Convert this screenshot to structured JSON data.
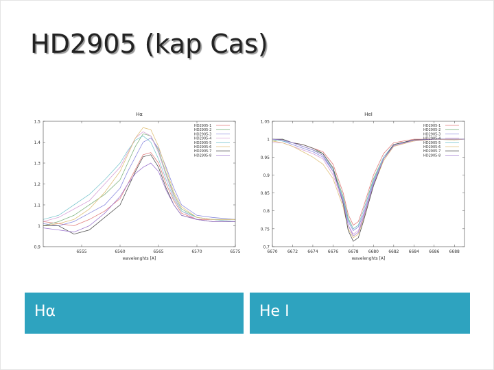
{
  "slide": {
    "title": "HD2905 (kap Cas)"
  },
  "captions": [
    "Hα",
    "He I"
  ],
  "legend_entries": [
    "HD2905-1",
    "HD2905-2",
    "HD2905-3",
    "HD2905-4",
    "HD2905-5",
    "HD2905-6",
    "HD2905-7",
    "HD2905-8"
  ],
  "series_colors": [
    "#e07a7a",
    "#7fb37f",
    "#8c8ce0",
    "#d6a0d6",
    "#7fc8d0",
    "#e0c07a",
    "#505050",
    "#a07ad0"
  ],
  "chart_data": [
    {
      "type": "line",
      "title": "Hα",
      "xlabel": "wavelenghts [A]",
      "ylabel": "",
      "xlim": [
        6550,
        6575
      ],
      "ylim": [
        0.9,
        1.5
      ],
      "xticks": [
        6555,
        6560,
        6565,
        6570,
        6575
      ],
      "yticks": [
        0.9,
        1,
        1.1,
        1.2,
        1.3,
        1.4,
        1.5
      ],
      "xtick_labels": [
        "6555",
        "6560",
        "6565",
        "6570",
        "6575"
      ],
      "ytick_labels": [
        "0.9",
        "1",
        "1.1",
        "1.2",
        "1.3",
        "1.4",
        "1.5"
      ],
      "legend_position": "top-right",
      "series": [
        {
          "name": "HD2905-1",
          "x": [
            6550,
            6552,
            6554,
            6556,
            6558,
            6560,
            6561,
            6562,
            6563,
            6564,
            6565,
            6566,
            6567,
            6568,
            6570,
            6572,
            6575
          ],
          "y": [
            1.02,
            1.01,
            1.0,
            1.03,
            1.07,
            1.13,
            1.2,
            1.27,
            1.34,
            1.35,
            1.3,
            1.2,
            1.12,
            1.06,
            1.03,
            1.03,
            1.02
          ]
        },
        {
          "name": "HD2905-2",
          "x": [
            6550,
            6552,
            6554,
            6556,
            6558,
            6560,
            6561,
            6562,
            6563,
            6564,
            6565,
            6566,
            6567,
            6568,
            6570,
            6572,
            6575
          ],
          "y": [
            1.0,
            1.02,
            1.05,
            1.1,
            1.15,
            1.22,
            1.3,
            1.38,
            1.44,
            1.43,
            1.36,
            1.25,
            1.15,
            1.08,
            1.04,
            1.03,
            1.03
          ]
        },
        {
          "name": "HD2905-3",
          "x": [
            6550,
            6552,
            6554,
            6556,
            6558,
            6560,
            6561,
            6562,
            6563,
            6564,
            6565,
            6566,
            6567,
            6568,
            6570,
            6572,
            6575
          ],
          "y": [
            1.01,
            1.0,
            1.02,
            1.06,
            1.1,
            1.18,
            1.26,
            1.33,
            1.4,
            1.42,
            1.37,
            1.28,
            1.18,
            1.1,
            1.05,
            1.04,
            1.03
          ]
        },
        {
          "name": "HD2905-4",
          "x": [
            6550,
            6552,
            6554,
            6556,
            6558,
            6560,
            6561,
            6562,
            6563,
            6564,
            6565,
            6566,
            6567,
            6568,
            6570,
            6572,
            6575
          ],
          "y": [
            1.02,
            1.04,
            1.08,
            1.12,
            1.2,
            1.28,
            1.35,
            1.42,
            1.45,
            1.43,
            1.35,
            1.24,
            1.14,
            1.07,
            1.03,
            1.02,
            1.02
          ]
        },
        {
          "name": "HD2905-5",
          "x": [
            6550,
            6552,
            6554,
            6556,
            6558,
            6560,
            6561,
            6562,
            6563,
            6564,
            6565,
            6566,
            6567,
            6568,
            6570,
            6572,
            6575
          ],
          "y": [
            1.03,
            1.05,
            1.1,
            1.15,
            1.22,
            1.3,
            1.36,
            1.41,
            1.43,
            1.4,
            1.32,
            1.22,
            1.13,
            1.07,
            1.04,
            1.03,
            1.02
          ]
        },
        {
          "name": "HD2905-6",
          "x": [
            6550,
            6552,
            6554,
            6556,
            6558,
            6560,
            6561,
            6562,
            6563,
            6564,
            6565,
            6566,
            6567,
            6568,
            6570,
            6572,
            6575
          ],
          "y": [
            1.0,
            1.01,
            1.03,
            1.08,
            1.16,
            1.26,
            1.34,
            1.42,
            1.47,
            1.46,
            1.38,
            1.27,
            1.16,
            1.09,
            1.04,
            1.03,
            1.03
          ]
        },
        {
          "name": "HD2905-7",
          "x": [
            6550,
            6552,
            6554,
            6556,
            6558,
            6560,
            6561,
            6562,
            6563,
            6564,
            6565,
            6566,
            6567,
            6568,
            6570,
            6572,
            6575
          ],
          "y": [
            1.0,
            1.0,
            0.96,
            0.98,
            1.04,
            1.1,
            1.18,
            1.26,
            1.33,
            1.34,
            1.28,
            1.18,
            1.1,
            1.05,
            1.03,
            1.02,
            1.02
          ]
        },
        {
          "name": "HD2905-8",
          "x": [
            6550,
            6552,
            6554,
            6556,
            6558,
            6560,
            6561,
            6562,
            6563,
            6564,
            6565,
            6566,
            6567,
            6568,
            6570,
            6572,
            6575
          ],
          "y": [
            0.99,
            0.98,
            0.97,
            1.0,
            1.06,
            1.14,
            1.2,
            1.25,
            1.28,
            1.3,
            1.26,
            1.17,
            1.1,
            1.05,
            1.03,
            1.02,
            1.02
          ]
        }
      ]
    },
    {
      "type": "line",
      "title": "HeI",
      "xlabel": "wavelenghts [A]",
      "ylabel": "",
      "xlim": [
        6670,
        6689
      ],
      "ylim": [
        0.7,
        1.05
      ],
      "xticks": [
        6670,
        6672,
        6674,
        6676,
        6678,
        6680,
        6682,
        6684,
        6686,
        6688
      ],
      "yticks": [
        0.7,
        0.75,
        0.8,
        0.85,
        0.9,
        0.95,
        1,
        1.05
      ],
      "xtick_labels": [
        "6670",
        "6672",
        "6674",
        "6676",
        "6678",
        "6680",
        "6682",
        "6684",
        "6686",
        "6688"
      ],
      "ytick_labels": [
        "0.7",
        "0.75",
        "0.8",
        "0.85",
        "0.9",
        "0.95",
        "1",
        "1.05"
      ],
      "legend_position": "top-right",
      "series": [
        {
          "name": "HD2905-1",
          "x": [
            6670,
            6671,
            6672,
            6673,
            6674,
            6675,
            6676,
            6677,
            6677.5,
            6678,
            6678.5,
            6679,
            6680,
            6681,
            6682,
            6684,
            6686,
            6688,
            6689
          ],
          "y": [
            1.0,
            0.998,
            0.99,
            0.985,
            0.975,
            0.965,
            0.93,
            0.85,
            0.79,
            0.76,
            0.77,
            0.81,
            0.9,
            0.96,
            0.99,
            1.0,
            1.0,
            1.0,
            1.0
          ]
        },
        {
          "name": "HD2905-2",
          "x": [
            6670,
            6671,
            6672,
            6673,
            6674,
            6675,
            6676,
            6677,
            6677.5,
            6678,
            6678.5,
            6679,
            6680,
            6681,
            6682,
            6684,
            6686,
            6688,
            6689
          ],
          "y": [
            0.995,
            1.0,
            0.99,
            0.98,
            0.97,
            0.96,
            0.92,
            0.84,
            0.78,
            0.75,
            0.76,
            0.8,
            0.89,
            0.95,
            0.985,
            0.998,
            1.0,
            0.998,
            1.0
          ]
        },
        {
          "name": "HD2905-3",
          "x": [
            6670,
            6671,
            6672,
            6673,
            6674,
            6675,
            6676,
            6677,
            6677.5,
            6678,
            6678.5,
            6679,
            6680,
            6681,
            6682,
            6684,
            6686,
            6688,
            6689
          ],
          "y": [
            1.0,
            0.995,
            0.985,
            0.975,
            0.965,
            0.95,
            0.91,
            0.83,
            0.77,
            0.745,
            0.755,
            0.79,
            0.88,
            0.95,
            0.985,
            0.998,
            1.0,
            1.0,
            1.0
          ]
        },
        {
          "name": "HD2905-4",
          "x": [
            6670,
            6671,
            6672,
            6673,
            6674,
            6675,
            6676,
            6677,
            6677.5,
            6678,
            6678.5,
            6679,
            6680,
            6681,
            6682,
            6684,
            6686,
            6688,
            6689
          ],
          "y": [
            0.99,
            0.99,
            0.98,
            0.97,
            0.96,
            0.945,
            0.9,
            0.82,
            0.76,
            0.735,
            0.745,
            0.785,
            0.875,
            0.945,
            0.98,
            0.995,
            1.0,
            1.0,
            1.0
          ]
        },
        {
          "name": "HD2905-5",
          "x": [
            6670,
            6671,
            6672,
            6673,
            6674,
            6675,
            6676,
            6677,
            6677.5,
            6678,
            6678.5,
            6679,
            6680,
            6681,
            6682,
            6684,
            6686,
            6688,
            6689
          ],
          "y": [
            1.0,
            0.995,
            0.99,
            0.98,
            0.97,
            0.955,
            0.915,
            0.835,
            0.775,
            0.75,
            0.76,
            0.8,
            0.885,
            0.95,
            0.985,
            0.998,
            1.0,
            1.0,
            1.0
          ]
        },
        {
          "name": "HD2905-6",
          "x": [
            6670,
            6671,
            6672,
            6673,
            6674,
            6675,
            6676,
            6677,
            6677.5,
            6678,
            6678.5,
            6679,
            6680,
            6681,
            6682,
            6684,
            6686,
            6688,
            6689
          ],
          "y": [
            0.995,
            0.99,
            0.98,
            0.965,
            0.95,
            0.93,
            0.89,
            0.81,
            0.75,
            0.725,
            0.735,
            0.775,
            0.87,
            0.94,
            0.98,
            0.995,
            1.0,
            0.998,
            1.0
          ]
        },
        {
          "name": "HD2905-7",
          "x": [
            6670,
            6671,
            6672,
            6673,
            6674,
            6675,
            6676,
            6677,
            6677.5,
            6678,
            6678.5,
            6679,
            6680,
            6681,
            6682,
            6684,
            6686,
            6688,
            6689
          ],
          "y": [
            1.0,
            1.0,
            0.99,
            0.985,
            0.975,
            0.96,
            0.92,
            0.82,
            0.745,
            0.715,
            0.725,
            0.77,
            0.87,
            0.945,
            0.985,
            0.998,
            1.0,
            1.0,
            1.0
          ]
        },
        {
          "name": "HD2905-8",
          "x": [
            6670,
            6671,
            6672,
            6673,
            6674,
            6675,
            6676,
            6677,
            6677.5,
            6678,
            6678.5,
            6679,
            6680,
            6681,
            6682,
            6684,
            6686,
            6688,
            6689
          ],
          "y": [
            1.0,
            0.998,
            0.99,
            0.98,
            0.97,
            0.955,
            0.91,
            0.825,
            0.76,
            0.73,
            0.74,
            0.78,
            0.875,
            0.945,
            0.982,
            0.997,
            1.0,
            1.0,
            1.0
          ]
        }
      ]
    }
  ]
}
